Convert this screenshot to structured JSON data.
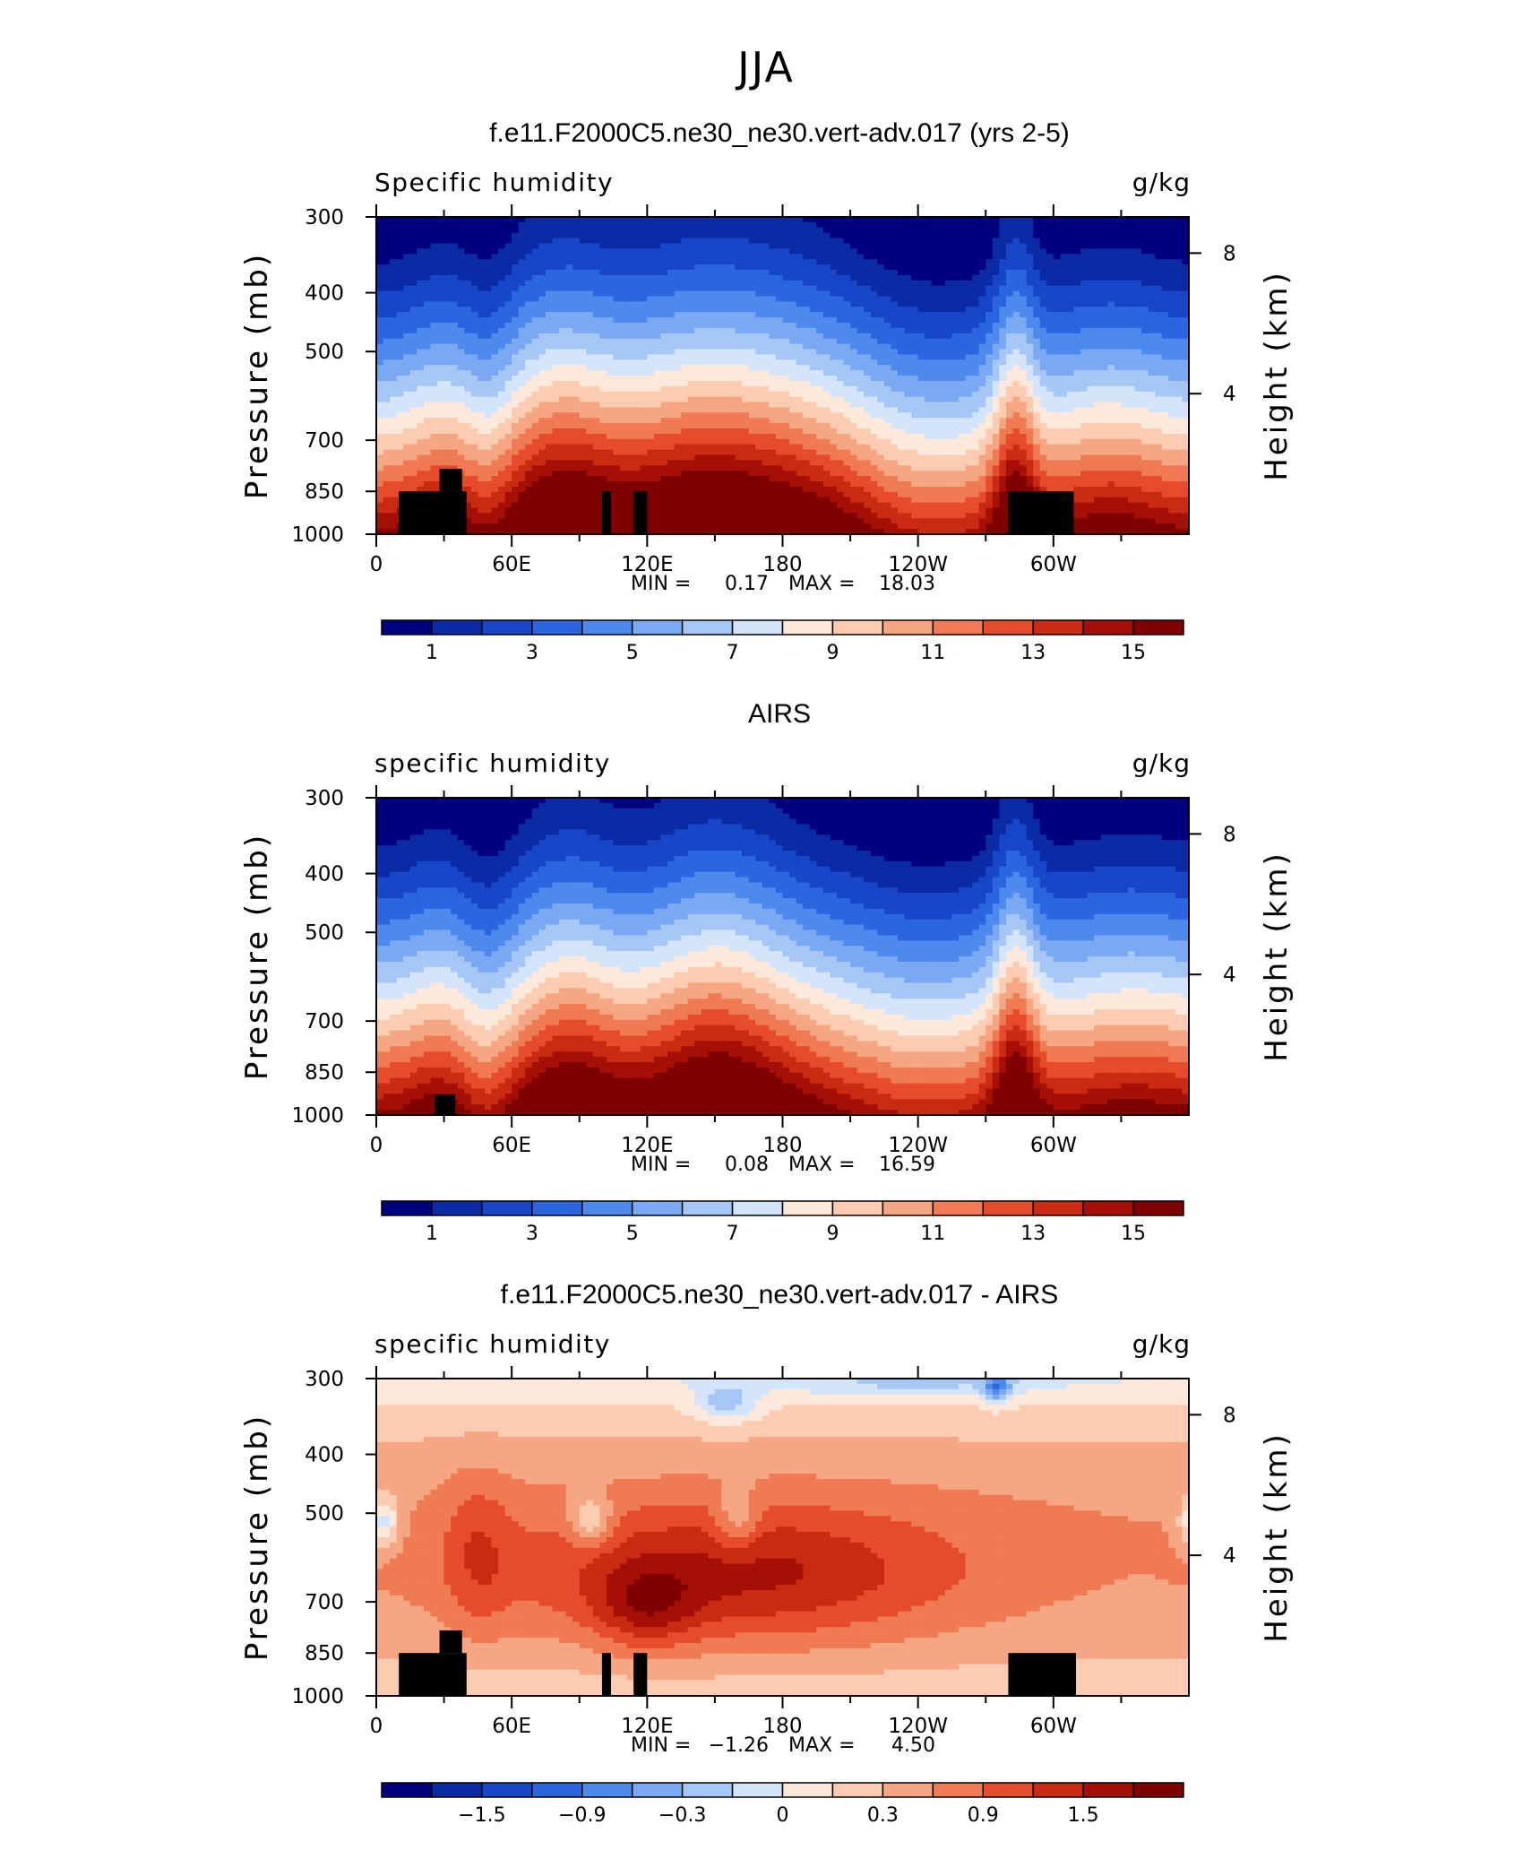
{
  "main_title": "JJA",
  "panels": [
    {
      "title": "f.e11.F2000C5.ne30_ne30.vert-adv.017 (yrs 2-5)",
      "left_label": "Specific humidity",
      "right_label": "g/kg",
      "ylabel": "Pressure (mb)",
      "ylabel_right": "Height (km)",
      "stats": [
        "MIN =",
        "0.17",
        "MAX =",
        "18.03"
      ],
      "colorbar_labels": [
        "1",
        "3",
        "5",
        "7",
        "9",
        "11",
        "13",
        "15"
      ]
    },
    {
      "title": "AIRS",
      "left_label": "specific humidity",
      "right_label": "g/kg",
      "ylabel": "Pressure (mb)",
      "ylabel_right": "Height (km)",
      "stats": [
        "MIN =",
        "0.08",
        "MAX =",
        "16.59"
      ],
      "colorbar_labels": [
        "1",
        "3",
        "5",
        "7",
        "9",
        "11",
        "13",
        "15"
      ]
    },
    {
      "title": "f.e11.F2000C5.ne30_ne30.vert-adv.017 - AIRS",
      "left_label": "specific humidity",
      "right_label": "g/kg",
      "ylabel": "Pressure (mb)",
      "ylabel_right": "Height (km)",
      "stats": [
        "MIN =",
        "−1.26",
        "MAX =",
        "4.50"
      ],
      "colorbar_labels": [
        "−1.5",
        "−0.9",
        "−0.3",
        "0",
        "0.3",
        "0.9",
        "1.5"
      ]
    }
  ],
  "colors": {
    "palette": [
      "#00007f",
      "#0b2aa6",
      "#1746c8",
      "#2b66e0",
      "#4e89ee",
      "#7aa8f2",
      "#a6c6f6",
      "#d3e4fb",
      "#fde9db",
      "#fbccb1",
      "#f6a683",
      "#ef7a53",
      "#e64c2b",
      "#cb2a12",
      "#a50f06",
      "#7f0000"
    ]
  },
  "chart_data": [
    {
      "type": "heatmap",
      "title": "f.e11.F2000C5.ne30_ne30.vert-adv.017 (yrs 2-5)",
      "xticks": [
        "0",
        "60E",
        "120E",
        "180",
        "120W",
        "60W"
      ],
      "xtick_values": [
        0,
        60,
        120,
        180,
        240,
        300
      ],
      "xlim": [
        0,
        360
      ],
      "yticks": [
        "300",
        "400",
        "500",
        "700",
        "850",
        "1000"
      ],
      "ytick_values": [
        300,
        400,
        500,
        700,
        850,
        1000
      ],
      "ylim": [
        1000,
        300
      ],
      "yscale": "log",
      "y2ticks": [
        "8",
        "4"
      ],
      "y2tick_values": [
        8,
        4
      ],
      "colorbar_values": [
        1,
        3,
        5,
        7,
        9,
        11,
        13,
        15
      ],
      "min": 0.17,
      "max": 18.03,
      "field": "specific humidity (model)",
      "mask": [
        [
          10,
          850,
          40,
          1000
        ],
        [
          28,
          780,
          38,
          850
        ],
        [
          100,
          850,
          104,
          1000
        ],
        [
          114,
          850,
          120,
          1000
        ],
        [
          280,
          850,
          309,
          1000
        ]
      ]
    },
    {
      "type": "heatmap",
      "title": "AIRS",
      "xticks": [
        "0",
        "60E",
        "120E",
        "180",
        "120W",
        "60W"
      ],
      "xtick_values": [
        0,
        60,
        120,
        180,
        240,
        300
      ],
      "xlim": [
        0,
        360
      ],
      "yticks": [
        "300",
        "400",
        "500",
        "700",
        "850",
        "1000"
      ],
      "ytick_values": [
        300,
        400,
        500,
        700,
        850,
        1000
      ],
      "ylim": [
        1000,
        300
      ],
      "yscale": "log",
      "y2ticks": [
        "8",
        "4"
      ],
      "y2tick_values": [
        8,
        4
      ],
      "colorbar_values": [
        1,
        3,
        5,
        7,
        9,
        11,
        13,
        15
      ],
      "min": 0.08,
      "max": 16.59,
      "field": "specific humidity (AIRS)",
      "mask": [
        [
          26,
          925,
          35,
          1000
        ]
      ]
    },
    {
      "type": "heatmap",
      "title": "f.e11.F2000C5.ne30_ne30.vert-adv.017 - AIRS",
      "xticks": [
        "0",
        "60E",
        "120E",
        "180",
        "120W",
        "60W"
      ],
      "xtick_values": [
        0,
        60,
        120,
        180,
        240,
        300
      ],
      "xlim": [
        0,
        360
      ],
      "yticks": [
        "300",
        "400",
        "500",
        "700",
        "850",
        "1000"
      ],
      "ytick_values": [
        300,
        400,
        500,
        700,
        850,
        1000
      ],
      "ylim": [
        1000,
        300
      ],
      "yscale": "log",
      "y2ticks": [
        "8",
        "4"
      ],
      "y2tick_values": [
        8,
        4
      ],
      "colorbar_values": [
        -1.5,
        -0.9,
        -0.3,
        0,
        0.3,
        0.9,
        1.5
      ],
      "min": -1.26,
      "max": 4.5,
      "field": "specific humidity difference",
      "mask": [
        [
          10,
          850,
          40,
          1000
        ],
        [
          28,
          780,
          38,
          850
        ],
        [
          100,
          850,
          104,
          1000
        ],
        [
          114,
          850,
          120,
          1000
        ],
        [
          280,
          850,
          310,
          1000
        ]
      ]
    }
  ]
}
